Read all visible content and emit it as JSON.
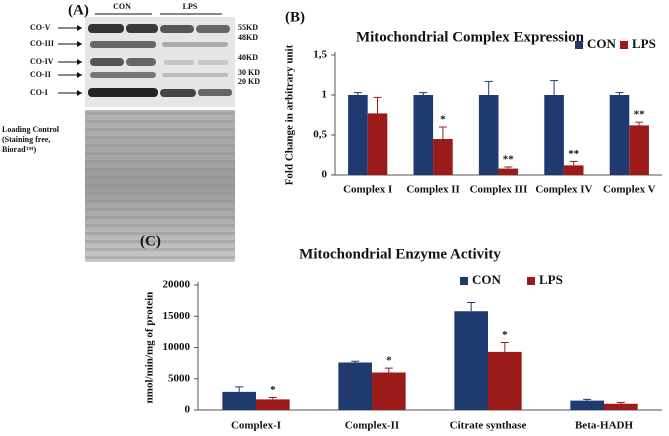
{
  "panel_a": {
    "label": "(A)",
    "groups": [
      "CON",
      "LPS"
    ],
    "bands": [
      "CO-V",
      "CO-III",
      "CO-IV",
      "CO-II",
      "CO-I"
    ],
    "sizes": [
      "55KD",
      "48KD",
      "40KD",
      "30 KD",
      "20 KD"
    ],
    "loading_control": [
      "Loading Control",
      "(Staining free,",
      "Biorad™)"
    ]
  },
  "chart_data": [
    {
      "type": "bar",
      "panel_label": "(B)",
      "title": "Mitochondrial Complex Expression",
      "ylabel": "Fold Change in arbitrary unit",
      "categories": [
        "Complex I",
        "Complex II",
        "Complex III",
        "Complex IV",
        "Complex V"
      ],
      "series": [
        {
          "name": "CON",
          "color": "#1f3a6e",
          "values": [
            1,
            1,
            1,
            1,
            1
          ],
          "errors": [
            0.03,
            0.03,
            0.17,
            0.18,
            0.03
          ],
          "significance": [
            null,
            null,
            null,
            null,
            null
          ]
        },
        {
          "name": "LPS",
          "color": "#9b1b1b",
          "values": [
            0.77,
            0.45,
            0.08,
            0.12,
            0.62
          ],
          "errors": [
            0.2,
            0.15,
            0.02,
            0.05,
            0.04
          ],
          "significance": [
            null,
            "*",
            "**",
            "**",
            "**"
          ]
        }
      ],
      "ylim": [
        0,
        1.5
      ],
      "yticks": [
        0,
        {
          "value": 0.5,
          "label": "0,5"
        },
        1,
        {
          "value": 1.5,
          "label": "1,5"
        }
      ],
      "grid": false,
      "legend": "top-right"
    },
    {
      "type": "bar",
      "panel_label": "(C)",
      "title": "Mitochondrial Enzyme Activity",
      "ylabel": "nmol/min/mg  of protein",
      "categories": [
        "Complex-I",
        "Complex-II",
        "Citrate synthase",
        "Beta-HADH"
      ],
      "series": [
        {
          "name": "CON",
          "color": "#1f3a6e",
          "values": [
            2900,
            7600,
            15800,
            1500
          ],
          "errors": [
            800,
            200,
            1400,
            200
          ],
          "significance": [
            null,
            null,
            null,
            null
          ]
        },
        {
          "name": "LPS",
          "color": "#9b1b1b",
          "values": [
            1700,
            6000,
            9300,
            1000
          ],
          "errors": [
            300,
            700,
            1500,
            200
          ],
          "significance": [
            "*",
            "*",
            "*",
            null
          ]
        }
      ],
      "ylim": [
        0,
        20000
      ],
      "yticks": [
        0,
        5000,
        10000,
        15000,
        20000
      ],
      "grid": false,
      "legend": "top-center"
    }
  ]
}
